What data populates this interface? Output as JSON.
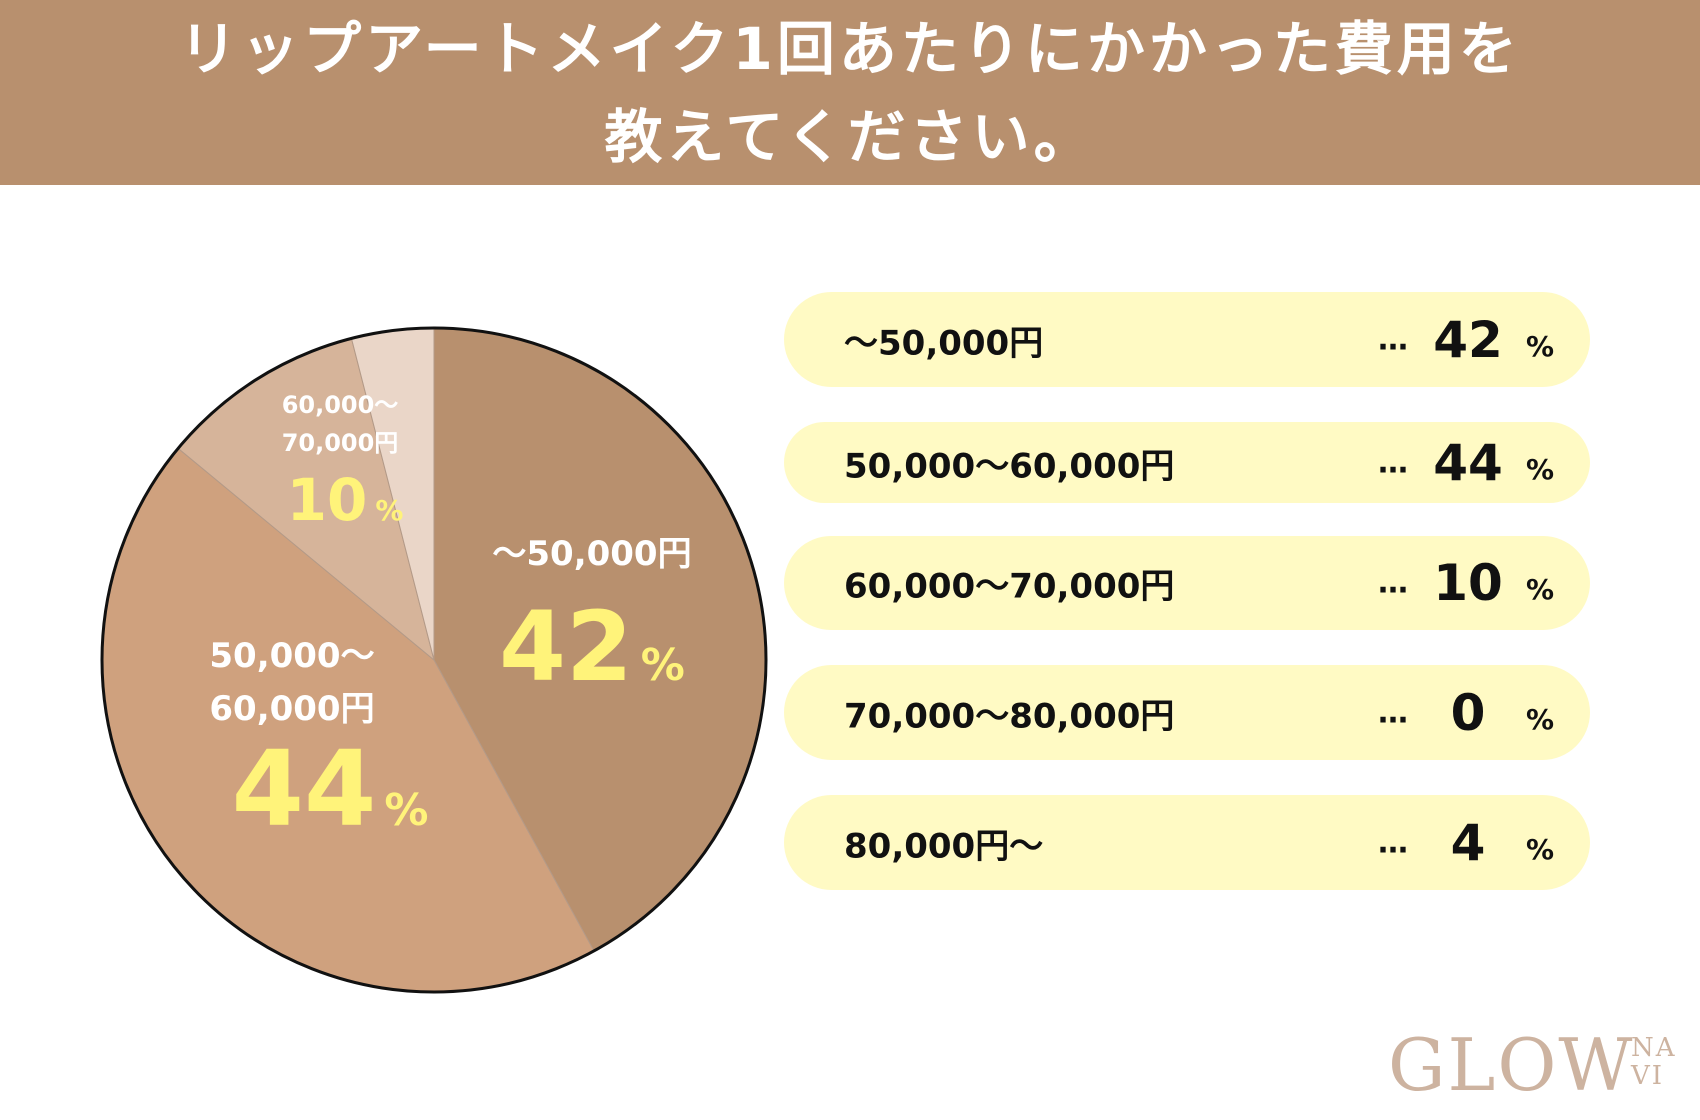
{
  "header": {
    "line1": "リップアートメイク1回あたりにかかった費用を",
    "line2": "教えてください。"
  },
  "chart_data": {
    "type": "pie",
    "title": "リップアートメイク1回あたりにかかった費用を教えてください。",
    "categories": [
      "〜50,000円",
      "50,000〜60,000円",
      "60,000〜70,000円",
      "70,000〜80,000円",
      "80,000円〜"
    ],
    "values": [
      42,
      44,
      10,
      0,
      4
    ],
    "unit": "%",
    "colors": [
      "#b8906e",
      "#cfa17e",
      "#d6b49a",
      "#e9d2c3",
      "#ead6c8"
    ],
    "slice_labels": [
      {
        "lines": [
          "〜50,000円"
        ],
        "pct": "42"
      },
      {
        "lines": [
          "50,000〜",
          "60,000円"
        ],
        "pct": "44"
      },
      {
        "lines": [
          "60,000〜",
          "70,000円"
        ],
        "pct": "10"
      }
    ]
  },
  "legend": {
    "rows": [
      {
        "label": "〜50,000円",
        "dots": "…",
        "value": "42",
        "pct": "%"
      },
      {
        "label": "50,000〜60,000円",
        "dots": "…",
        "value": "44",
        "pct": "%"
      },
      {
        "label": "60,000〜70,000円",
        "dots": "…",
        "value": "10",
        "pct": "%"
      },
      {
        "label": "70,000〜80,000円",
        "dots": "…",
        "value": "0",
        "pct": "%"
      },
      {
        "label": "80,000円〜",
        "dots": "…",
        "value": "4",
        "pct": "%"
      }
    ]
  },
  "logo": {
    "main": "GLOW",
    "sub_top": "NA",
    "sub_bottom": "VI"
  },
  "colors": {
    "header_bg": "#b8906e",
    "legend_bg": "#fffac4",
    "pct_highlight": "#fff37a",
    "slice_label_text": "#ffffff"
  }
}
